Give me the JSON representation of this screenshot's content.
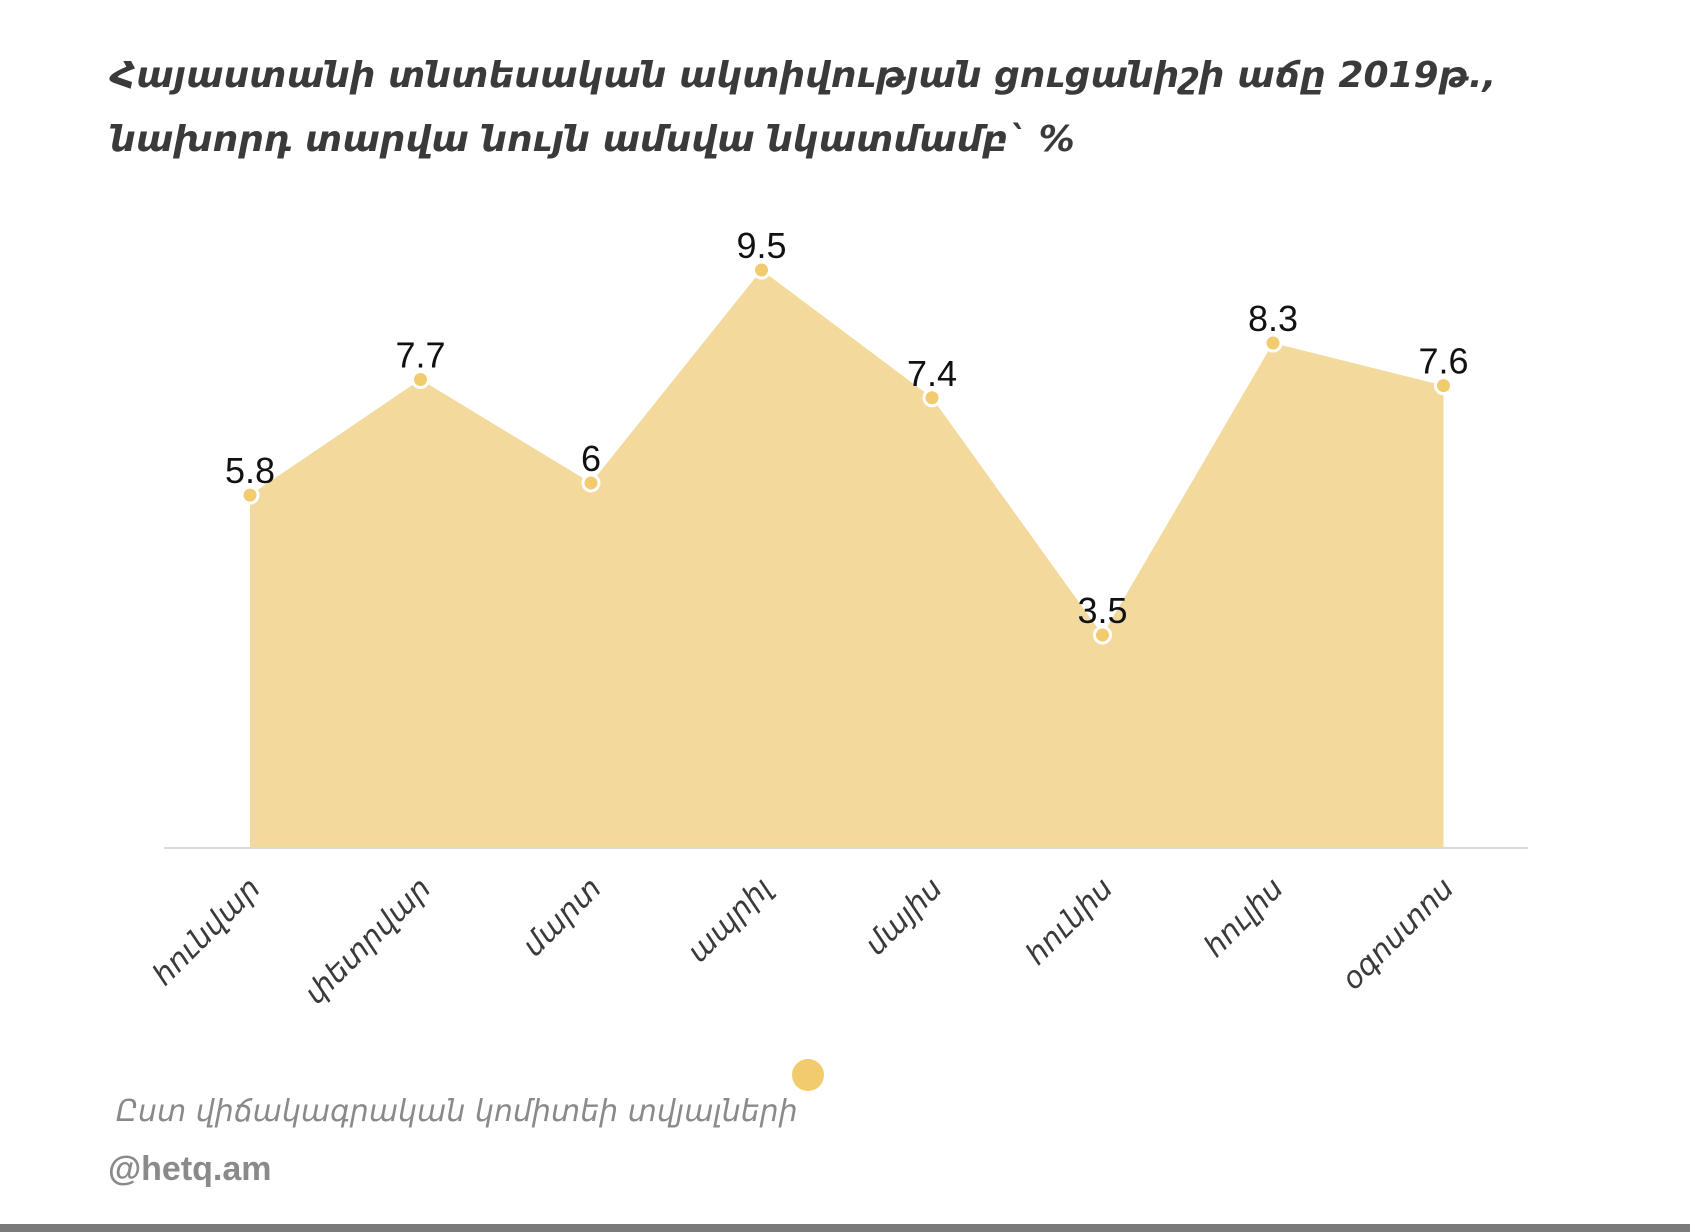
{
  "title": "Հայաստանի տնտեսական ակտիվության ցուցանիշի աճը 2019թ., նախորդ տարվա նույն ամսվա նկատմամբ` %",
  "source": "Ըստ վիճակագրական կոմիտեի տվյալների",
  "credit": "@hetq.am",
  "colors": {
    "area_fill": "#f3da9c",
    "point": "#f1cb6e",
    "point_stroke": "#ffffff",
    "axis": "#d9d9d9",
    "label": "#111111",
    "tick": "#3a3a3a"
  },
  "chart_data": {
    "type": "area",
    "categories": [
      "հունվար",
      "փետրվար",
      "մարտ",
      "ապրիլ",
      "մայիս",
      "հունիս",
      "հուլիս",
      "օգոստոս"
    ],
    "series": [
      {
        "values": [
          5.8,
          7.7,
          6,
          9.5,
          7.4,
          3.5,
          8.3,
          7.6
        ],
        "data_labels": [
          "5.8",
          "7.7",
          "6",
          "9.5",
          "7.4",
          "3.5",
          "8.3",
          "7.6"
        ]
      }
    ],
    "ylim": [
      0,
      9.5
    ],
    "xlabel": "",
    "ylabel": "",
    "grid": false,
    "legend": "bottom-center"
  }
}
